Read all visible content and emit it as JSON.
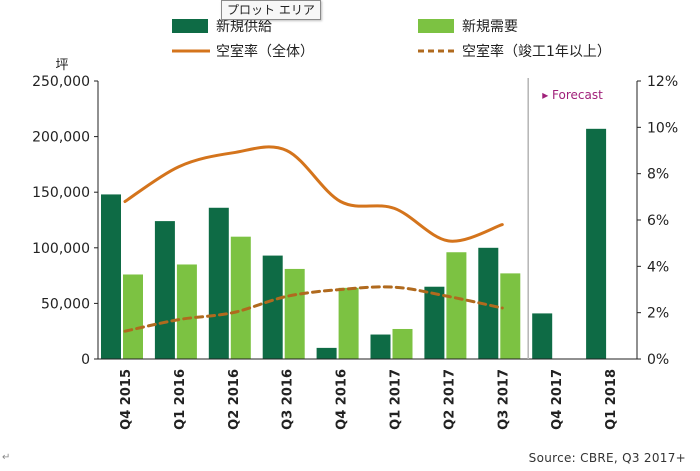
{
  "tooltip": "プロット エリア",
  "source": "Source: CBRE, Q3 2017",
  "trailing_mark": "+",
  "para_mark": "↵",
  "colors": {
    "supply": "#0e6b45",
    "demand": "#7cc242",
    "vacancy_total": "#d4741c",
    "vacancy_new": "#b06a1e",
    "forecast": "#a0207a",
    "divider": "#b5b5b5"
  },
  "chart_data": {
    "type": "bar",
    "categories": [
      "Q4 2015",
      "Q1 2016",
      "Q2 2016",
      "Q3 2016",
      "Q4 2016",
      "Q1 2017",
      "Q2 2017",
      "Q3 2017",
      "Q4 2017",
      "Q1 2018"
    ],
    "y_left": {
      "unit": "坪",
      "min": 0,
      "max": 250000,
      "ticks": [
        "0",
        "50,000",
        "100,000",
        "150,000",
        "200,000",
        "250,000"
      ]
    },
    "y_right": {
      "min": 0,
      "max": 12,
      "ticks": [
        "0%",
        "2%",
        "4%",
        "6%",
        "8%",
        "10%",
        "12%"
      ]
    },
    "series": [
      {
        "name": "新規供給",
        "kind": "bar",
        "values": [
          148000,
          124000,
          136000,
          93000,
          10000,
          22000,
          65000,
          100000,
          41000,
          207000
        ]
      },
      {
        "name": "新規需要",
        "kind": "bar",
        "values": [
          76000,
          85000,
          110000,
          81000,
          64000,
          27000,
          96000,
          77000,
          null,
          null
        ]
      },
      {
        "name": "空室率（全体）",
        "kind": "line",
        "axis": "right",
        "values": [
          6.8,
          8.3,
          8.9,
          9.0,
          6.8,
          6.5,
          5.1,
          5.8,
          null,
          null
        ]
      },
      {
        "name": "空室率（竣工1年以上）",
        "kind": "line",
        "axis": "right",
        "dashed": true,
        "values": [
          1.2,
          1.7,
          2.0,
          2.7,
          3.0,
          3.1,
          2.7,
          2.2,
          null,
          null
        ]
      }
    ],
    "annotation": "▸ Forecast",
    "forecast_start_index": 8,
    "legend_position": "top",
    "grid": false
  }
}
